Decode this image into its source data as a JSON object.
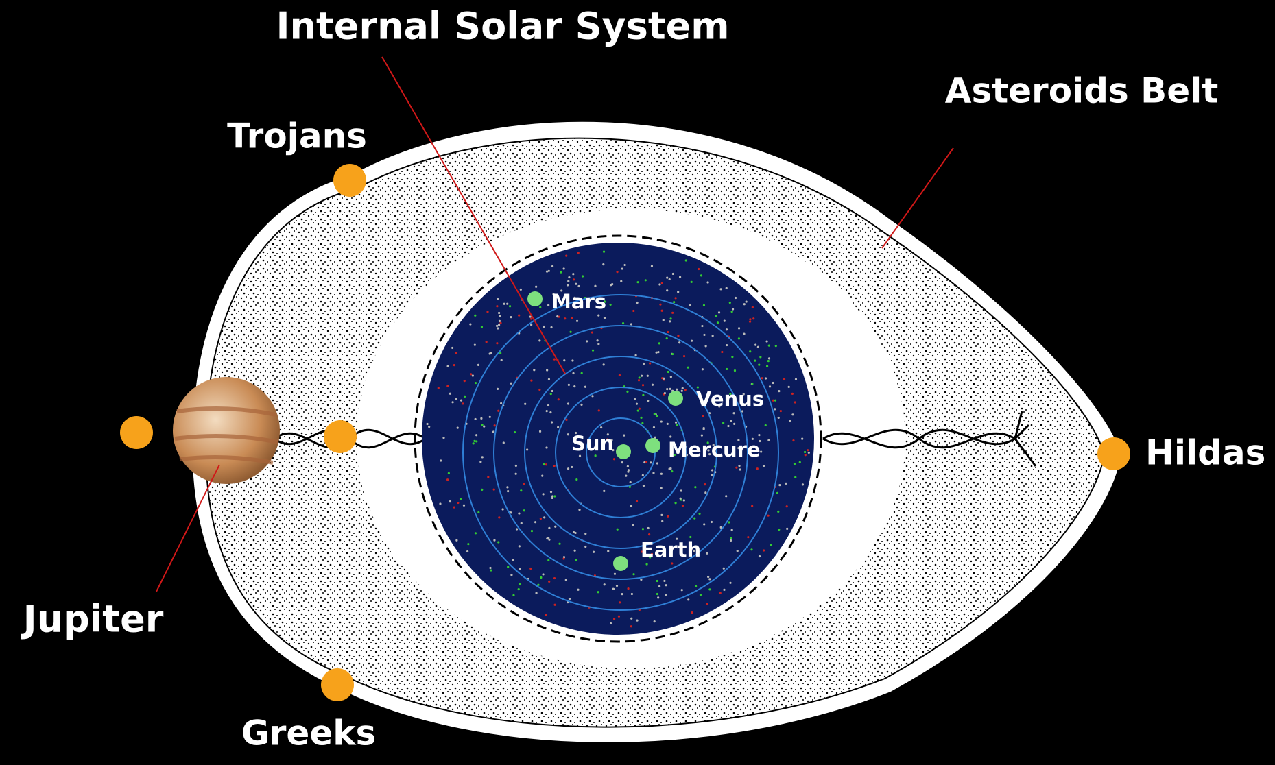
{
  "title": "Internal Solar System",
  "labels": {
    "asteroids_belt": "Asteroids Belt",
    "trojans": "Trojans",
    "hildas": "Hildas",
    "jupiter": "Jupiter",
    "greeks": "Greeks"
  },
  "inner_labels": {
    "mars": "Mars",
    "venus": "Venus",
    "sun": "Sun",
    "mercure": "Mercure",
    "earth": "Earth"
  }
}
